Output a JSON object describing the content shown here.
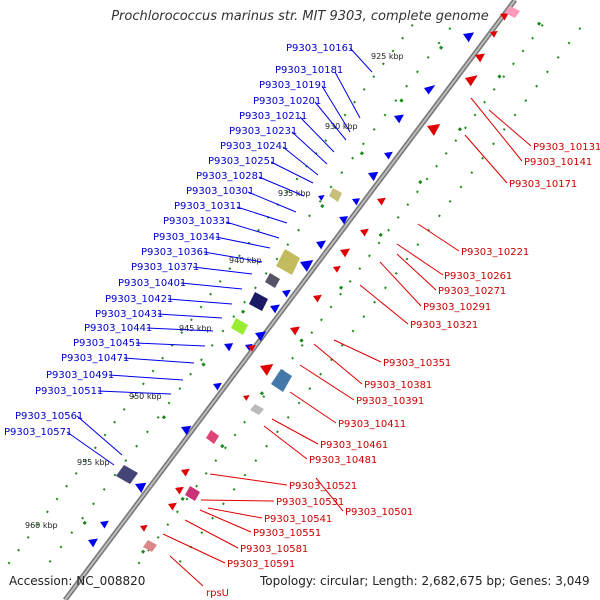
{
  "title": "Prochlorococcus marinus str. MIT 9303, complete genome",
  "footer": {
    "accession": "Accession: NC_008820",
    "topology": "Topology: circular; Length: 2,682,675 bp; Genes: 3,049"
  },
  "colors": {
    "forward": "#0000ee",
    "reverse": "#e00000",
    "forward_label": "#0000cc",
    "reverse_label": "#cc0000",
    "backbone": "#888888",
    "tick_green": "#1a8a1a"
  },
  "kbp_labels": [
    "925 kbp",
    "930 kbp",
    "935 kbp",
    "940 kbp",
    "945 kbp",
    "950 kbp",
    "955 kbp",
    "960 kbp"
  ],
  "forward_genes": [
    "P9303_10161",
    "P9303_10181",
    "P9303_10191",
    "P9303_10201",
    "P9303_10211",
    "P9303_10231",
    "P9303_10241",
    "P9303_10251",
    "P9303_10281",
    "P9303_10301",
    "P9303_10311",
    "P9303_10331",
    "P9303_10341",
    "P9303_10361",
    "P9303_10371",
    "P9303_10401",
    "P9303_10421",
    "P9303_10431",
    "P9303_10441",
    "P9303_10451",
    "P9303_10471",
    "P9303_10491",
    "P9303_10511",
    "P9303_10561",
    "P9303_10571"
  ],
  "reverse_genes": [
    "P9303_10131",
    "P9303_10141",
    "P9303_10171",
    "P9303_10221",
    "P9303_10261",
    "P9303_10271",
    "P9303_10291",
    "P9303_10321",
    "P9303_10351",
    "P9303_10381",
    "P9303_10391",
    "P9303_10411",
    "P9303_10461",
    "P9303_10481",
    "P9303_10521",
    "P9303_10531",
    "P9303_10501",
    "P9303_10541",
    "P9303_10551",
    "P9303_10581",
    "P9303_10591",
    "rpsU"
  ]
}
